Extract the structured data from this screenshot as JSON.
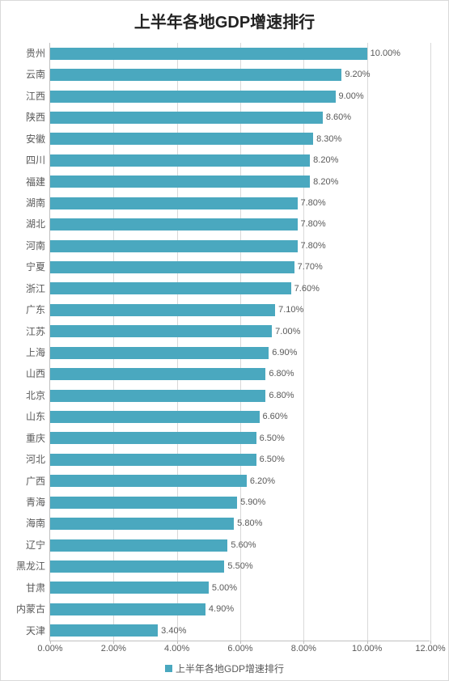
{
  "chart": {
    "type": "bar-horizontal",
    "title": "上半年各地GDP增速排行",
    "title_fontsize": 20,
    "title_fontweight": "bold",
    "background_color": "#ffffff",
    "border_color": "#d9d9d9",
    "grid_color": "#d9d9d9",
    "axis_color": "#bfbfbf",
    "text_color": "#595959",
    "bar_color": "#4aa8bf",
    "bar_height_ratio": 0.57,
    "label_fontsize": 12,
    "value_fontsize": 11,
    "tick_fontsize": 11,
    "x_axis": {
      "min": 0.0,
      "max": 12.0,
      "tick_step": 2.0,
      "tick_format_suffix": "%",
      "tick_decimals": 2
    },
    "categories": [
      "贵州",
      "云南",
      "江西",
      "陕西",
      "安徽",
      "四川",
      "福建",
      "湖南",
      "湖北",
      "河南",
      "宁夏",
      "浙江",
      "广东",
      "江苏",
      "上海",
      "山西",
      "北京",
      "山东",
      "重庆",
      "河北",
      "广西",
      "青海",
      "海南",
      "辽宁",
      "黑龙江",
      "甘肃",
      "内蒙古",
      "天津"
    ],
    "values": [
      10.0,
      9.2,
      9.0,
      8.6,
      8.3,
      8.2,
      8.2,
      7.8,
      7.8,
      7.8,
      7.7,
      7.6,
      7.1,
      7.0,
      6.9,
      6.8,
      6.8,
      6.6,
      6.5,
      6.5,
      6.2,
      5.9,
      5.8,
      5.6,
      5.5,
      5.0,
      4.9,
      3.4
    ],
    "value_label_decimals": 2,
    "value_label_suffix": "%",
    "legend": {
      "label": "上半年各地GDP增速排行",
      "swatch_color": "#4aa8bf"
    }
  }
}
